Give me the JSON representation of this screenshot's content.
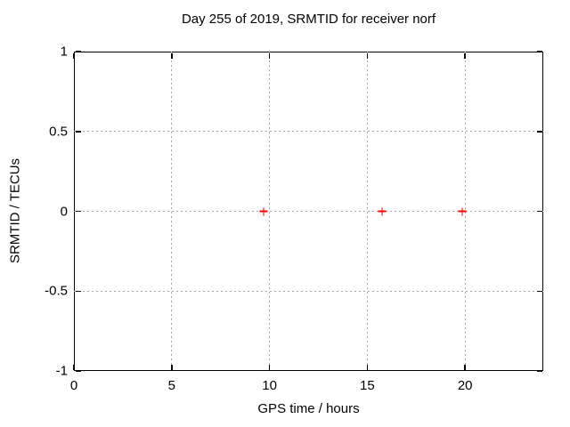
{
  "chart_data": {
    "type": "scatter",
    "title": "Day 255 of 2019, SRMTID for receiver norf",
    "xlabel": "GPS time / hours",
    "ylabel": "SRMTID / TECUs",
    "xlim": [
      0,
      24
    ],
    "ylim": [
      -1,
      1
    ],
    "xticks": [
      0,
      5,
      10,
      15,
      20
    ],
    "xtick_labels": [
      "0",
      "5",
      "10",
      "15",
      "20"
    ],
    "yticks": [
      1,
      0.5,
      0,
      -0.5,
      -1
    ],
    "ytick_labels": [
      "1",
      "0.5",
      "0",
      "-0.5",
      "-1"
    ],
    "grid": true,
    "legend": "none",
    "series": [
      {
        "name": "SRMTID",
        "marker": "plus",
        "color": "#ff0000",
        "points": [
          {
            "x": 9.7,
            "y": 0.0
          },
          {
            "x": 15.75,
            "y": 0.0
          },
          {
            "x": 19.85,
            "y": 0.0
          }
        ]
      }
    ],
    "colors": {
      "grid": "#a8a8a8",
      "axis": "#000000",
      "text": "#000000",
      "background": "#ffffff"
    }
  }
}
